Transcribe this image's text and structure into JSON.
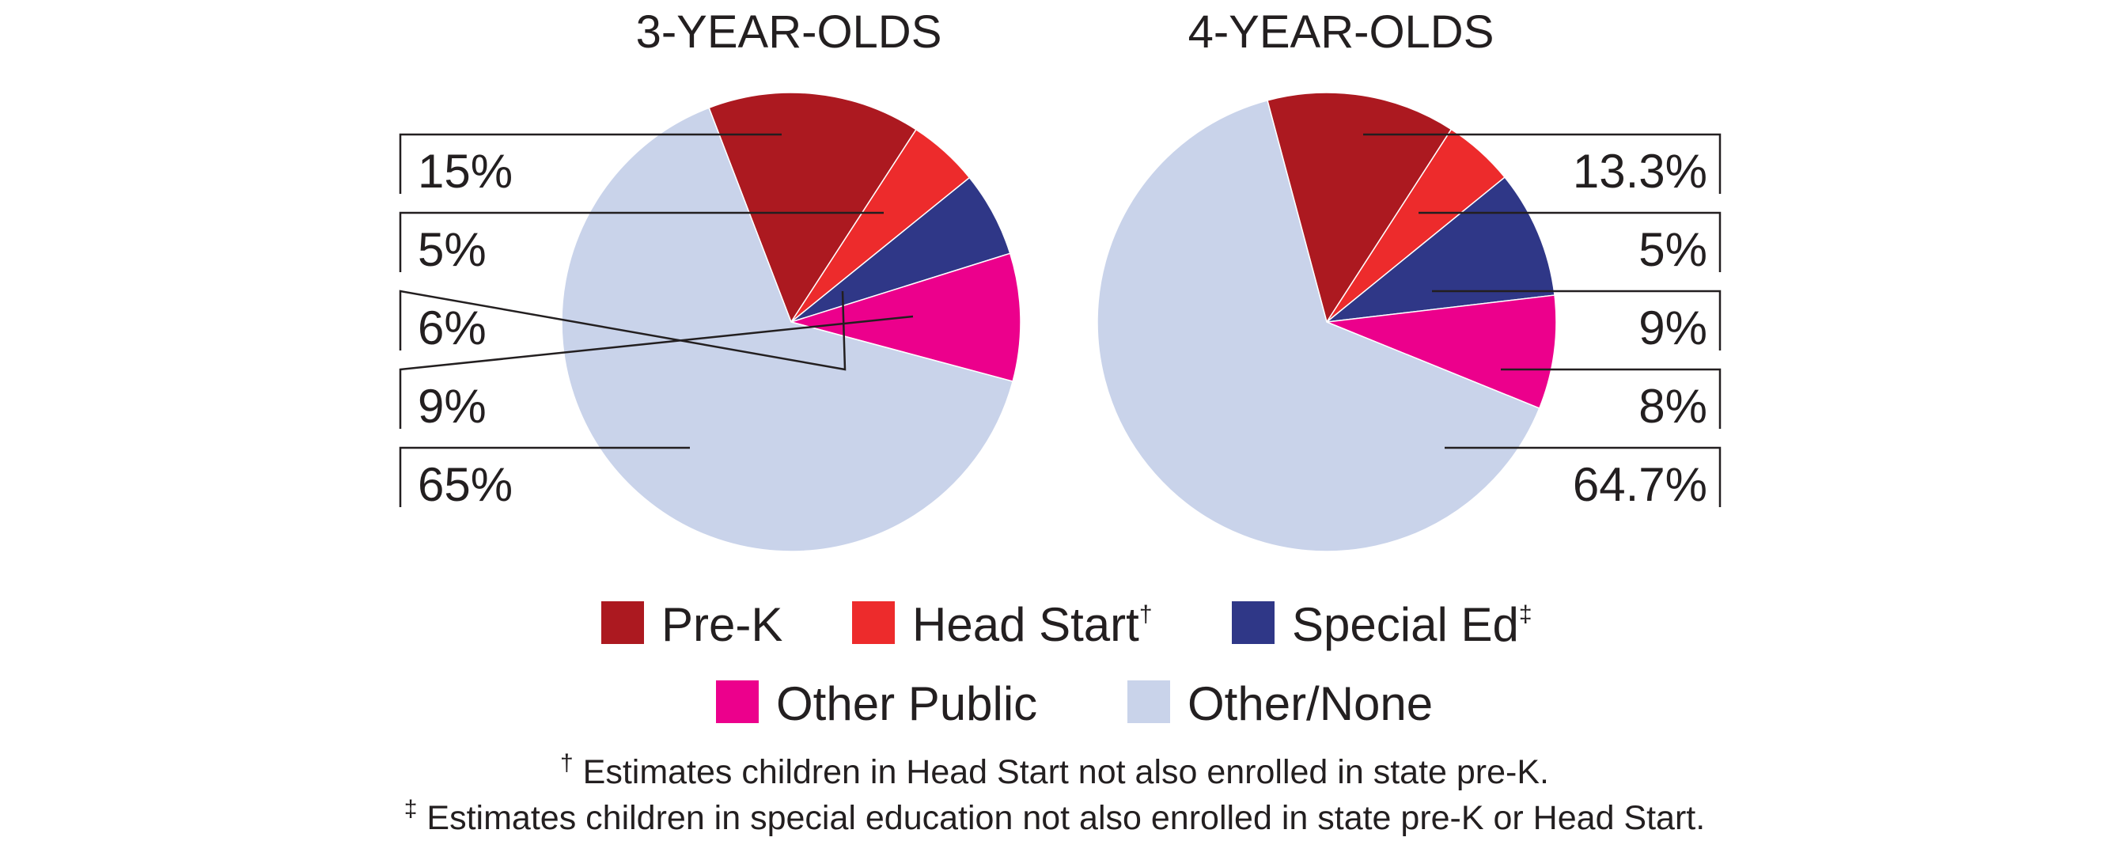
{
  "chart_data": [
    {
      "type": "pie",
      "title": "3-YEAR-OLDS",
      "categories": [
        "Pre-K",
        "Head Start",
        "Special Ed",
        "Other Public",
        "Other/None"
      ],
      "values": [
        15,
        5,
        6,
        9,
        65
      ],
      "labels": [
        "15%",
        "5%",
        "6%",
        "9%",
        "65%"
      ]
    },
    {
      "type": "pie",
      "title": "4-YEAR-OLDS",
      "categories": [
        "Pre-K",
        "Head Start",
        "Special Ed",
        "Other Public",
        "Other/None"
      ],
      "values": [
        13.3,
        5,
        9,
        8,
        64.7
      ],
      "labels": [
        "13.3%",
        "5%",
        "9%",
        "8%",
        "64.7%"
      ]
    }
  ],
  "legend": {
    "items": [
      {
        "label": "Pre-K",
        "mark": "",
        "color": "#ac1920"
      },
      {
        "label": "Head Start",
        "mark": "†",
        "color": "#ed2b2c"
      },
      {
        "label": "Special Ed",
        "mark": "‡",
        "color": "#2f3787"
      },
      {
        "label": "Other Public",
        "mark": "",
        "color": "#ec008c"
      },
      {
        "label": "Other/None",
        "mark": "",
        "color": "#c9d3ea"
      }
    ]
  },
  "footnotes": [
    {
      "mark": "†",
      "text": " Estimates children in Head Start not also enrolled in state pre-K."
    },
    {
      "mark": "‡",
      "text": " Estimates children in special education not also enrolled in state pre-K or Head Start."
    }
  ]
}
